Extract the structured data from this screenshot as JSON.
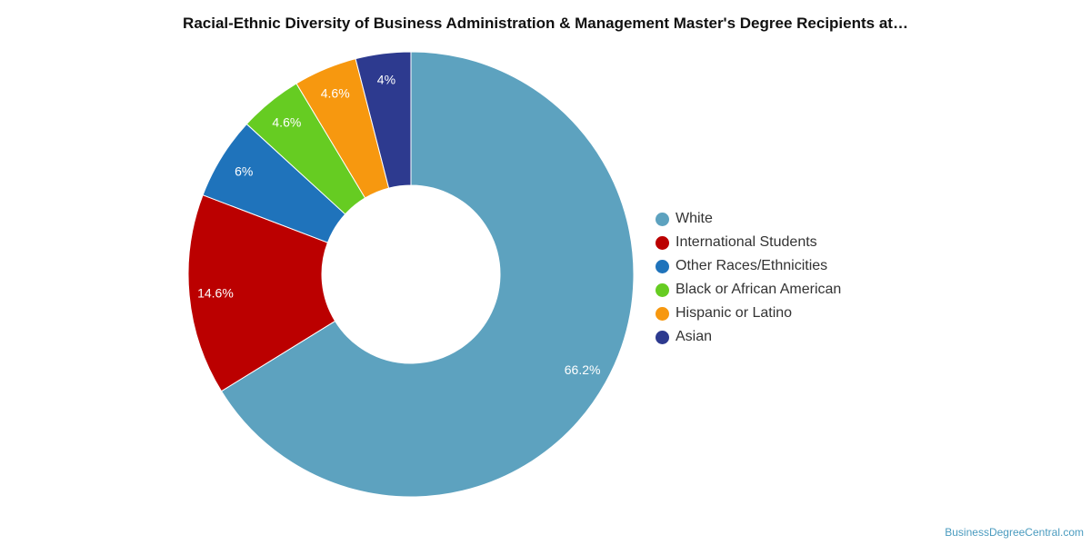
{
  "chart_data": {
    "type": "pie",
    "variant": "donut",
    "title": "Racial-Ethnic Diversity of Business Administration & Management Master's Degree Recipients at…",
    "legend_position": "right",
    "slices": [
      {
        "label": "White",
        "value": 66.2,
        "display": "66.2%",
        "color": "#5da2bf"
      },
      {
        "label": "International Students",
        "value": 14.6,
        "display": "14.6%",
        "color": "#bb0000"
      },
      {
        "label": "Other Races/Ethnicities",
        "value": 6.0,
        "display": "6%",
        "color": "#1f73bb"
      },
      {
        "label": "Black or African American",
        "value": 4.6,
        "display": "4.6%",
        "color": "#66cc22"
      },
      {
        "label": "Hispanic or Latino",
        "value": 4.6,
        "display": "4.6%",
        "color": "#f7980f"
      },
      {
        "label": "Asian",
        "value": 4.0,
        "display": "4%",
        "color": "#2d3a8f"
      }
    ]
  },
  "watermark": "BusinessDegreeCentral.com"
}
